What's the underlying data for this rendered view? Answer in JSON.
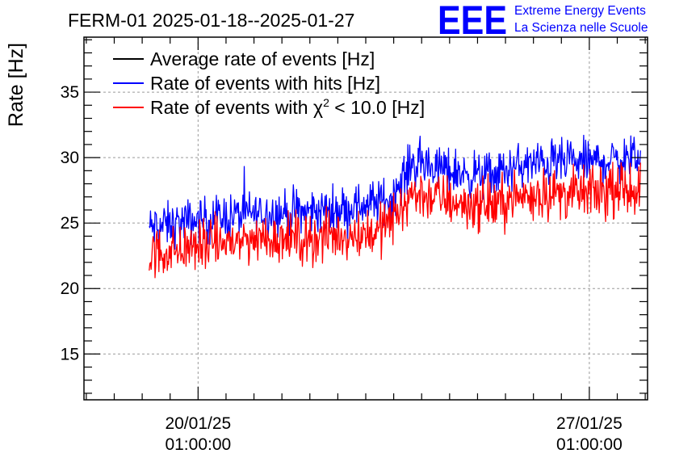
{
  "chart_data": {
    "type": "line",
    "title": "FERM-01 2025-01-18--2025-01-27",
    "ylabel": "Rate [Hz]",
    "xlabel": "",
    "x_axis_type": "datetime",
    "xlim": [
      "2025-01-18T00:00:00",
      "2025-01-28T02:00:00"
    ],
    "ylim": [
      11.5,
      39.2
    ],
    "y_ticks": [
      15,
      20,
      25,
      30,
      35
    ],
    "x_ticks": [
      {
        "value": "2025-01-20T01:00:00",
        "date_label": "20/01/25",
        "time_label": "01:00:00"
      },
      {
        "value": "2025-01-27T01:00:00",
        "date_label": "27/01/25",
        "time_label": "01:00:00"
      }
    ],
    "grid": true,
    "legend_position": "top-left",
    "series": [
      {
        "name": "Average rate of events [Hz]",
        "color": "#000000",
        "x": [
          "2025-01-19T04:00:00",
          "2025-01-27T23:00:00"
        ],
        "y": [
          null,
          null
        ]
      },
      {
        "name": "Rate of events with hits [Hz]",
        "color": "#0000ff",
        "x": [
          "2025-01-19T04:00:00",
          "2025-01-19T18:00:00",
          "2025-01-20T12:00:00",
          "2025-01-21T06:00:00",
          "2025-01-22T00:00:00",
          "2025-01-22T18:00:00",
          "2025-01-23T06:00:00",
          "2025-01-23T12:00:00",
          "2025-01-23T21:00:00",
          "2025-01-24T06:00:00",
          "2025-01-24T18:00:00",
          "2025-01-25T06:00:00",
          "2025-01-25T18:00:00",
          "2025-01-26T06:00:00",
          "2025-01-26T18:00:00",
          "2025-01-27T12:00:00",
          "2025-01-27T23:00:00"
        ],
        "y": [
          24.6,
          25.0,
          25.5,
          25.8,
          25.8,
          26.2,
          26.6,
          26.9,
          29.6,
          29.3,
          28.8,
          28.6,
          29.3,
          29.6,
          29.6,
          29.8,
          30.0
        ],
        "spread": 0.85
      },
      {
        "name": "Rate of events with χ² < 10.0 [Hz]",
        "label_prefix": "Rate of events with ",
        "label_symbol": "χ",
        "label_exponent": "2",
        "label_suffix": " < 10.0 [Hz]",
        "color": "#ff0000",
        "x": [
          "2025-01-19T04:00:00",
          "2025-01-19T18:00:00",
          "2025-01-20T12:00:00",
          "2025-01-21T06:00:00",
          "2025-01-22T00:00:00",
          "2025-01-22T18:00:00",
          "2025-01-23T06:00:00",
          "2025-01-23T12:00:00",
          "2025-01-23T21:00:00",
          "2025-01-24T06:00:00",
          "2025-01-24T18:00:00",
          "2025-01-25T06:00:00",
          "2025-01-25T18:00:00",
          "2025-01-26T06:00:00",
          "2025-01-26T18:00:00",
          "2025-01-27T12:00:00",
          "2025-01-27T23:00:00"
        ],
        "y": [
          22.6,
          23.0,
          23.5,
          23.9,
          23.8,
          24.1,
          24.4,
          25.2,
          27.3,
          27.0,
          26.5,
          26.3,
          27.0,
          27.3,
          27.2,
          27.4,
          27.7
        ],
        "spread": 0.95
      }
    ]
  },
  "logo": {
    "mark": "EEE",
    "line1": "Extreme Energy Events",
    "line2": "La Scienza nelle Scuole",
    "color": "#0000ff"
  }
}
